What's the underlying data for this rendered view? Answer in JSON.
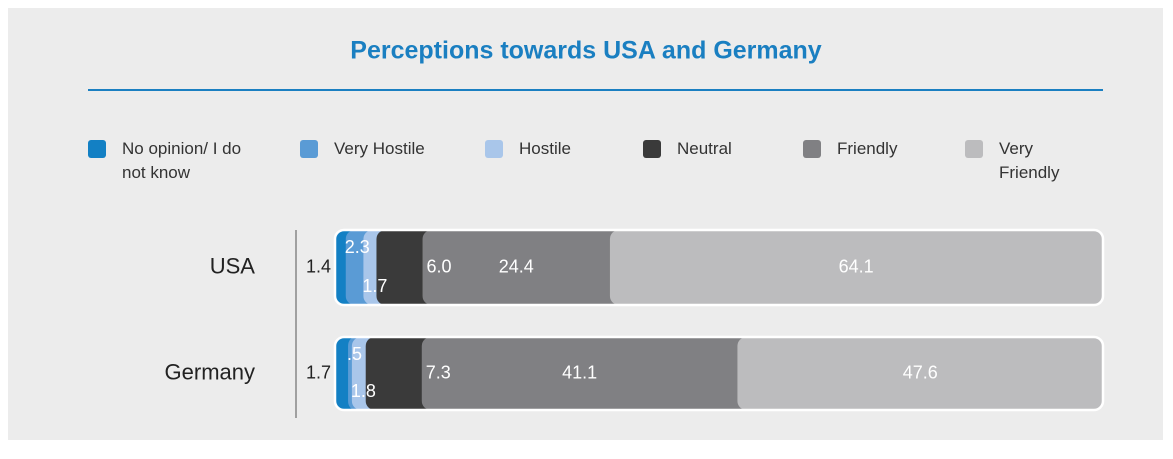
{
  "chart_data": {
    "type": "bar",
    "orientation": "horizontal",
    "stacked": true,
    "title": "Perceptions towards USA and Germany",
    "categories": [
      "USA",
      "Germany"
    ],
    "xlim": [
      0,
      100
    ],
    "series": [
      {
        "name": "No opinion/ I do not know",
        "color": "#1380c4",
        "values": [
          1.4,
          1.7
        ],
        "value_labels": [
          "1.4",
          "1.7"
        ]
      },
      {
        "name": "Very Hostile",
        "color": "#5a9bd5",
        "values": [
          2.3,
          0.5
        ],
        "value_labels": [
          "2.3",
          ".5"
        ]
      },
      {
        "name": "Hostile",
        "color": "#a9c6ea",
        "values": [
          1.7,
          1.8
        ],
        "value_labels": [
          "1.7",
          "1.8"
        ]
      },
      {
        "name": "Neutral",
        "color": "#3a3a3a",
        "values": [
          6.0,
          7.3
        ],
        "value_labels": [
          "6.0",
          "7.3"
        ]
      },
      {
        "name": "Friendly",
        "color": "#808083",
        "values": [
          24.4,
          41.1
        ],
        "value_labels": [
          "24.4",
          "41.1"
        ]
      },
      {
        "name": "Very Friendly",
        "color": "#bcbcbe",
        "values": [
          64.1,
          47.6
        ],
        "value_labels": [
          "64.1",
          "47.6"
        ]
      }
    ]
  }
}
